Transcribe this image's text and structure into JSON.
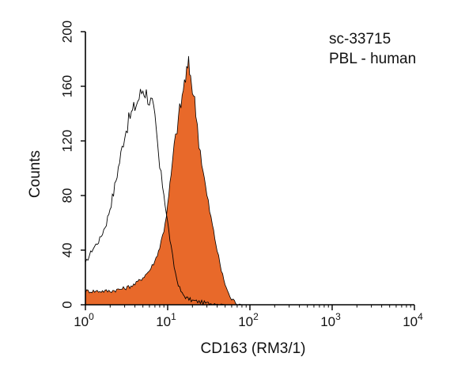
{
  "chart_data": {
    "type": "area",
    "xlabel": "CD163 (RM3/1)",
    "ylabel": "Counts",
    "x_scale": "log",
    "xlim": [
      1,
      10000
    ],
    "ylim": [
      0,
      200
    ],
    "x_ticks": [
      {
        "value": 1,
        "base": "10",
        "exp": "0"
      },
      {
        "value": 10,
        "base": "10",
        "exp": "1"
      },
      {
        "value": 100,
        "base": "10",
        "exp": "2"
      },
      {
        "value": 1000,
        "base": "10",
        "exp": "3"
      },
      {
        "value": 10000,
        "base": "10",
        "exp": "4"
      }
    ],
    "y_ticks": [
      "0",
      "40",
      "80",
      "120",
      "160",
      "200"
    ],
    "y_tick_values": [
      0,
      40,
      80,
      120,
      160,
      200
    ],
    "annotations": [
      "sc-33715",
      "PBL - human"
    ],
    "grid": false,
    "series": [
      {
        "style": "outline",
        "color": "#000000",
        "x": [
          1,
          1.2,
          1.5,
          1.8,
          2.2,
          2.6,
          3.0,
          3.5,
          4.0,
          4.5,
          5.0,
          5.5,
          6.0,
          6.5,
          7.0,
          7.5,
          8.0,
          9.0,
          10,
          11,
          12,
          13,
          14,
          15,
          17,
          20,
          25,
          30,
          40,
          50,
          70,
          100,
          1000,
          10000
        ],
        "y": [
          30,
          40,
          48,
          60,
          82,
          105,
          125,
          138,
          145,
          152,
          158,
          155,
          150,
          147,
          135,
          118,
          100,
          82,
          60,
          42,
          28,
          18,
          12,
          8,
          5,
          3,
          2,
          1,
          1,
          0,
          0,
          0,
          0,
          0
        ]
      },
      {
        "style": "filled",
        "color": "#E8692A",
        "x": [
          1,
          1.5,
          2,
          3,
          4,
          5,
          6,
          7,
          8,
          9,
          10,
          11,
          12,
          13,
          14,
          15,
          16,
          17,
          18,
          19,
          20,
          22,
          24,
          27,
          30,
          35,
          40,
          45,
          50,
          55,
          60,
          70,
          80,
          100,
          1000,
          10000
        ],
        "y": [
          10,
          10,
          10,
          12,
          15,
          20,
          25,
          32,
          42,
          55,
          72,
          95,
          115,
          130,
          142,
          152,
          163,
          170,
          175,
          168,
          160,
          142,
          120,
          98,
          80,
          58,
          40,
          25,
          15,
          8,
          4,
          1,
          0,
          0,
          0,
          0
        ]
      }
    ]
  }
}
